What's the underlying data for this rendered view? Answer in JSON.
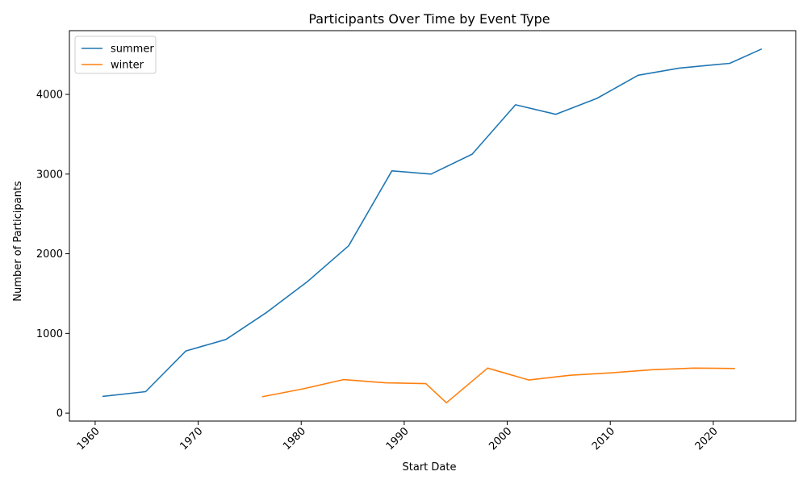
{
  "chart_data": {
    "type": "line",
    "title": "Participants Over Time by Event Type",
    "xlabel": "Start Date",
    "ylabel": "Number of Participants",
    "xlim": [
      1957.5,
      2028.0
    ],
    "ylim": [
      -100,
      4800
    ],
    "x_ticks": [
      1960,
      1970,
      1980,
      1990,
      2000,
      2010,
      2020
    ],
    "y_ticks": [
      0,
      1000,
      2000,
      3000,
      4000
    ],
    "grid": false,
    "legend_position": "top-left",
    "series": [
      {
        "name": "summer",
        "color": "#1f77b4",
        "x": [
          1960.7,
          1964.9,
          1968.8,
          1972.7,
          1976.6,
          1980.6,
          1984.6,
          1988.8,
          1992.6,
          1996.6,
          2000.8,
          2004.7,
          2008.7,
          2012.7,
          2016.7,
          2021.6,
          2024.7
        ],
        "y": [
          210,
          270,
          780,
          925,
          1260,
          1650,
          2100,
          3040,
          3000,
          3250,
          3870,
          3750,
          3950,
          4240,
          4330,
          4390,
          4570
        ]
      },
      {
        "name": "winter",
        "color": "#ff7f0e",
        "x": [
          1976.2,
          1980.2,
          1984.1,
          1988.2,
          1992.1,
          1994.1,
          1998.1,
          2002.1,
          2006.1,
          2010.1,
          2014.1,
          2018.1,
          2022.1
        ],
        "y": [
          205,
          305,
          420,
          380,
          370,
          130,
          565,
          415,
          475,
          505,
          545,
          565,
          560
        ]
      }
    ]
  }
}
